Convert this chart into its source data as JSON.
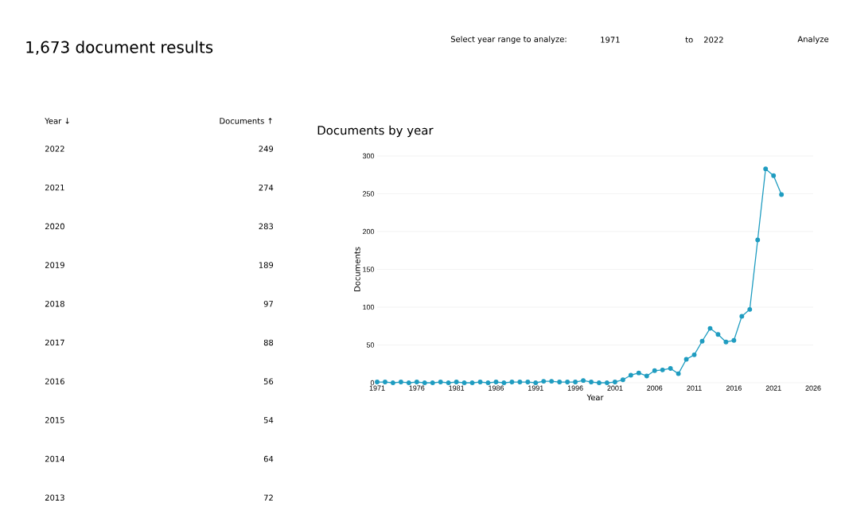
{
  "chart_data": {
    "type": "line",
    "title": "Documents by year",
    "xlabel": "Year",
    "ylabel": "Documents",
    "x": [
      1971,
      1972,
      1973,
      1974,
      1975,
      1976,
      1977,
      1978,
      1979,
      1980,
      1981,
      1982,
      1983,
      1984,
      1985,
      1986,
      1987,
      1988,
      1989,
      1990,
      1991,
      1992,
      1993,
      1994,
      1995,
      1996,
      1997,
      1998,
      1999,
      2000,
      2001,
      2002,
      2003,
      2004,
      2005,
      2006,
      2007,
      2008,
      2009,
      2010,
      2011,
      2012,
      2013,
      2014,
      2015,
      2016,
      2017,
      2018,
      2019,
      2020,
      2021,
      2022
    ],
    "series": [
      {
        "color": "#1f9cc0",
        "values": [
          1,
          1,
          0,
          1,
          0,
          1,
          0,
          0,
          1,
          0,
          1,
          0,
          0,
          1,
          0,
          1,
          0,
          1,
          1,
          1,
          0,
          2,
          2,
          1,
          1,
          1,
          3,
          1,
          0,
          0,
          1,
          4,
          10,
          13,
          9,
          16,
          17,
          19,
          12,
          31,
          37,
          55,
          72,
          64,
          54,
          56,
          88,
          97,
          189,
          283,
          274,
          249
        ]
      }
    ],
    "xlim": [
      1971,
      2026
    ],
    "xticks": [
      1971,
      1976,
      1981,
      1986,
      1991,
      1996,
      2001,
      2006,
      2011,
      2016,
      2021,
      2026
    ],
    "ylim": [
      0,
      300
    ],
    "yticks": [
      0,
      50,
      100,
      150,
      200,
      250,
      300
    ],
    "grid": "y",
    "marker": "circle",
    "line_style": "solid",
    "annotations": [
      "1,673 document results",
      "Select year range to analyze:",
      "1971",
      "to",
      "2022",
      "Analyze",
      "Year ↓",
      "Documents ↑",
      "2022",
      "249",
      "2021",
      "274",
      "2020",
      "283",
      "2019",
      "189",
      "2018",
      "97",
      "2017",
      "88",
      "2016",
      "56",
      "2015",
      "54",
      "2014",
      "64",
      "2013",
      "72"
    ]
  }
}
